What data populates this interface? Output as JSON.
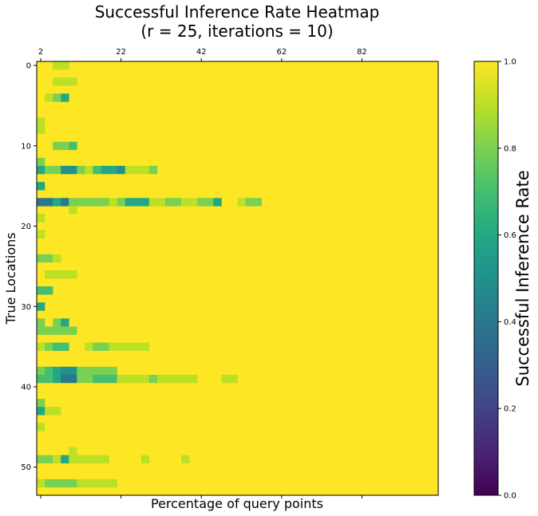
{
  "chart_data": {
    "type": "heatmap",
    "title_line1": "Successful Inference Rate Heatmap",
    "title_line2": "(r = 25, iterations = 10)",
    "xlabel": "Percentage of query points",
    "ylabel": "True Locations",
    "x_start": 2,
    "x_step": 2,
    "x_count": 50,
    "y_count": 54,
    "x_ticks": [
      2,
      22,
      42,
      62,
      82
    ],
    "y_ticks": [
      0,
      10,
      20,
      30,
      40,
      50
    ],
    "colorbar": {
      "label": "Successful Inference Rate",
      "min": 0.0,
      "max": 1.0,
      "ticks": [
        "0.0",
        "0.2",
        "0.4",
        "0.6",
        "0.8",
        "1.0"
      ],
      "colormap": "viridis"
    },
    "default_value": 1.0,
    "cells": [
      {
        "row": 0,
        "values": [
          [
            2,
            0.9
          ],
          [
            3,
            0.9
          ]
        ]
      },
      {
        "row": 2,
        "values": [
          [
            2,
            0.9
          ],
          [
            3,
            0.9
          ],
          [
            4,
            0.9
          ]
        ]
      },
      {
        "row": 4,
        "values": [
          [
            1,
            0.9
          ],
          [
            2,
            0.8
          ],
          [
            3,
            0.6
          ]
        ]
      },
      {
        "row": 7,
        "values": [
          [
            0,
            0.9
          ]
        ]
      },
      {
        "row": 8,
        "values": [
          [
            0,
            0.9
          ]
        ]
      },
      {
        "row": 10,
        "values": [
          [
            2,
            0.8
          ],
          [
            3,
            0.8
          ],
          [
            4,
            0.7
          ]
        ]
      },
      {
        "row": 12,
        "values": [
          [
            0,
            0.8
          ]
        ]
      },
      {
        "row": 13,
        "values": [
          [
            0,
            0.6
          ],
          [
            1,
            0.8
          ],
          [
            2,
            0.8
          ],
          [
            3,
            0.5
          ],
          [
            4,
            0.5
          ],
          [
            5,
            0.8
          ],
          [
            6,
            0.9
          ],
          [
            7,
            0.7
          ],
          [
            8,
            0.6
          ],
          [
            9,
            0.6
          ],
          [
            10,
            0.5
          ],
          [
            11,
            0.9
          ],
          [
            12,
            0.9
          ],
          [
            13,
            0.9
          ],
          [
            14,
            0.8
          ]
        ]
      },
      {
        "row": 15,
        "values": [
          [
            0,
            0.6
          ]
        ]
      },
      {
        "row": 17,
        "values": [
          [
            0,
            0.4
          ],
          [
            1,
            0.4
          ],
          [
            2,
            0.6
          ],
          [
            3,
            0.4
          ],
          [
            4,
            0.8
          ],
          [
            5,
            0.8
          ],
          [
            6,
            0.8
          ],
          [
            7,
            0.8
          ],
          [
            8,
            0.8
          ],
          [
            9,
            0.9
          ],
          [
            10,
            0.8
          ],
          [
            11,
            0.6
          ],
          [
            12,
            0.6
          ],
          [
            13,
            0.6
          ],
          [
            14,
            0.9
          ],
          [
            15,
            0.9
          ],
          [
            16,
            0.8
          ],
          [
            17,
            0.8
          ],
          [
            18,
            0.9
          ],
          [
            19,
            0.9
          ],
          [
            20,
            0.8
          ],
          [
            21,
            0.8
          ],
          [
            22,
            0.6
          ],
          [
            25,
            0.9
          ],
          [
            26,
            0.8
          ],
          [
            27,
            0.8
          ]
        ]
      },
      {
        "row": 18,
        "values": [
          [
            4,
            0.9
          ]
        ]
      },
      {
        "row": 19,
        "values": [
          [
            0,
            0.9
          ]
        ]
      },
      {
        "row": 21,
        "values": [
          [
            0,
            0.9
          ]
        ]
      },
      {
        "row": 24,
        "values": [
          [
            0,
            0.8
          ],
          [
            1,
            0.8
          ],
          [
            2,
            0.9
          ]
        ]
      },
      {
        "row": 26,
        "values": [
          [
            1,
            0.9
          ],
          [
            2,
            0.9
          ],
          [
            3,
            0.9
          ],
          [
            4,
            0.9
          ]
        ]
      },
      {
        "row": 28,
        "values": [
          [
            0,
            0.7
          ],
          [
            1,
            0.7
          ]
        ]
      },
      {
        "row": 30,
        "values": [
          [
            0,
            0.6
          ]
        ]
      },
      {
        "row": 32,
        "values": [
          [
            0,
            0.8
          ],
          [
            2,
            0.8
          ],
          [
            3,
            0.6
          ]
        ]
      },
      {
        "row": 33,
        "values": [
          [
            0,
            0.8
          ],
          [
            1,
            0.8
          ],
          [
            2,
            0.8
          ],
          [
            3,
            0.8
          ],
          [
            4,
            0.8
          ]
        ]
      },
      {
        "row": 35,
        "values": [
          [
            0,
            0.9
          ],
          [
            1,
            0.8
          ],
          [
            2,
            0.7
          ],
          [
            3,
            0.7
          ],
          [
            6,
            0.9
          ],
          [
            7,
            0.8
          ],
          [
            8,
            0.8
          ],
          [
            9,
            0.9
          ],
          [
            10,
            0.9
          ],
          [
            11,
            0.9
          ],
          [
            12,
            0.9
          ],
          [
            13,
            0.9
          ]
        ]
      },
      {
        "row": 38,
        "values": [
          [
            0,
            0.8
          ],
          [
            1,
            0.7
          ],
          [
            2,
            0.6
          ],
          [
            3,
            0.5
          ],
          [
            4,
            0.5
          ],
          [
            5,
            0.8
          ],
          [
            6,
            0.8
          ],
          [
            7,
            0.8
          ],
          [
            8,
            0.8
          ],
          [
            9,
            0.8
          ]
        ]
      },
      {
        "row": 39,
        "values": [
          [
            0,
            0.7
          ],
          [
            1,
            0.7
          ],
          [
            2,
            0.6
          ],
          [
            3,
            0.4
          ],
          [
            4,
            0.4
          ],
          [
            5,
            0.8
          ],
          [
            6,
            0.8
          ],
          [
            7,
            0.7
          ],
          [
            8,
            0.7
          ],
          [
            9,
            0.7
          ],
          [
            10,
            0.9
          ],
          [
            11,
            0.9
          ],
          [
            12,
            0.9
          ],
          [
            13,
            0.9
          ],
          [
            14,
            0.8
          ],
          [
            15,
            0.9
          ],
          [
            16,
            0.9
          ],
          [
            17,
            0.9
          ],
          [
            18,
            0.9
          ],
          [
            19,
            0.9
          ],
          [
            23,
            0.9
          ],
          [
            24,
            0.9
          ]
        ]
      },
      {
        "row": 42,
        "values": [
          [
            0,
            0.8
          ]
        ]
      },
      {
        "row": 43,
        "values": [
          [
            0,
            0.6
          ],
          [
            1,
            0.9
          ],
          [
            2,
            0.9
          ]
        ]
      },
      {
        "row": 45,
        "values": [
          [
            0,
            0.9
          ]
        ]
      },
      {
        "row": 48,
        "values": [
          [
            4,
            0.9
          ]
        ]
      },
      {
        "row": 49,
        "values": [
          [
            0,
            0.8
          ],
          [
            1,
            0.8
          ],
          [
            2,
            0.9
          ],
          [
            3,
            0.6
          ],
          [
            4,
            0.9
          ],
          [
            5,
            0.9
          ],
          [
            6,
            0.9
          ],
          [
            7,
            0.9
          ],
          [
            8,
            0.9
          ],
          [
            13,
            0.9
          ],
          [
            18,
            0.9
          ]
        ]
      },
      {
        "row": 52,
        "values": [
          [
            0,
            0.9
          ],
          [
            1,
            0.8
          ],
          [
            2,
            0.8
          ],
          [
            3,
            0.8
          ],
          [
            4,
            0.8
          ],
          [
            5,
            0.9
          ],
          [
            6,
            0.9
          ],
          [
            7,
            0.9
          ],
          [
            8,
            0.9
          ],
          [
            9,
            0.9
          ]
        ]
      }
    ]
  }
}
